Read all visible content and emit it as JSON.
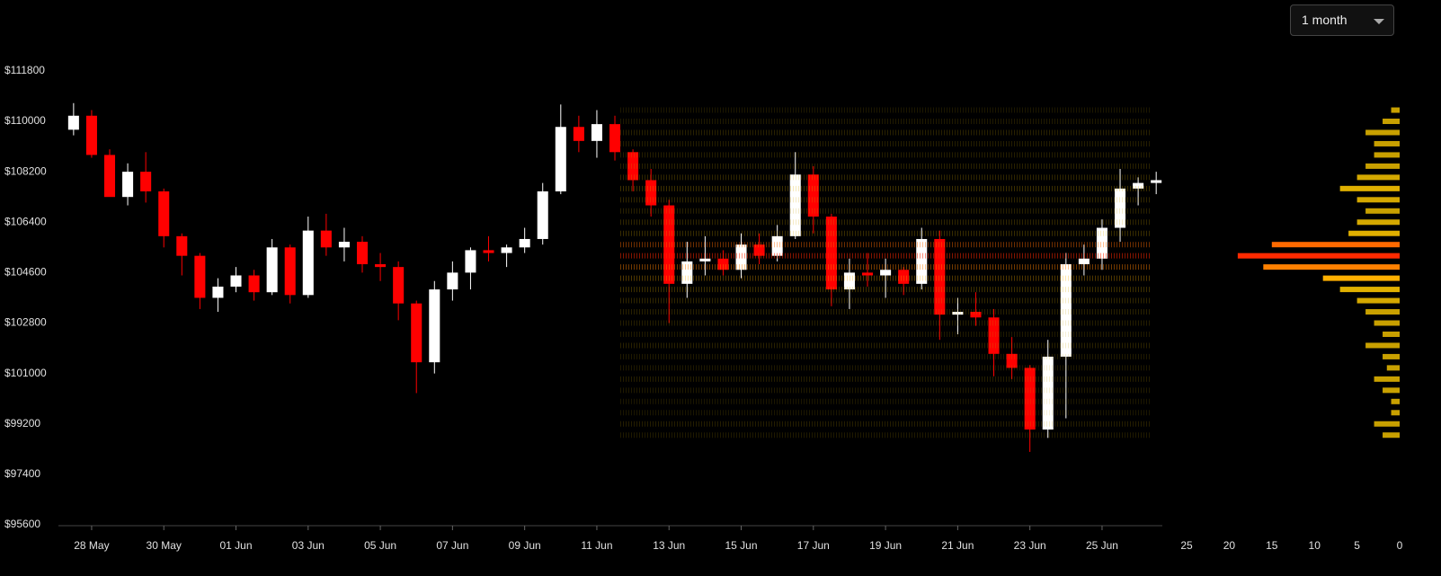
{
  "controls": {
    "range": "1 month"
  },
  "chart_data": [
    {
      "type": "candlestick",
      "up_color": "#ffffff",
      "down_color": "#ff0000",
      "x": [
        27.5,
        28,
        28.5,
        29,
        29.5,
        30,
        30.5,
        31,
        31.5,
        32,
        32.5,
        33,
        33.5,
        34,
        34.5,
        35,
        35.5,
        36,
        36.5,
        37,
        37.5,
        38,
        38.5,
        39,
        39.5,
        40,
        40.5,
        41,
        41.5,
        42,
        42.5,
        43,
        43.5,
        44,
        44.5,
        45,
        45.5,
        46,
        46.5,
        47,
        47.5,
        48,
        48.5,
        49,
        49.5,
        50,
        50.5,
        51,
        51.5,
        52,
        52.5,
        53,
        53.5,
        54,
        54.5,
        55,
        55.5,
        56,
        56.5,
        57,
        57.5
      ],
      "open": [
        109700,
        110200,
        108800,
        107300,
        108200,
        107500,
        105900,
        105200,
        103700,
        104100,
        104500,
        103900,
        105500,
        103800,
        106100,
        105500,
        105700,
        104900,
        104800,
        103500,
        101400,
        104000,
        104600,
        105400,
        105300,
        105500,
        105800,
        107500,
        109800,
        109300,
        109900,
        108900,
        107900,
        107000,
        104200,
        105000,
        105100,
        104700,
        105600,
        105200,
        105900,
        108100,
        106600,
        104000,
        104600,
        104500,
        104700,
        104200,
        105800,
        103100,
        103200,
        103000,
        101700,
        101200,
        99000,
        101600,
        104900,
        105100,
        106200,
        107600,
        107800
      ],
      "high": [
        110650,
        110400,
        109000,
        108500,
        108900,
        107600,
        106000,
        105300,
        104400,
        104800,
        104700,
        105800,
        105600,
        106600,
        106700,
        106200,
        105900,
        105300,
        105000,
        103600,
        104300,
        105000,
        105500,
        105900,
        105600,
        106200,
        107800,
        110600,
        110200,
        110400,
        110200,
        109000,
        108300,
        107200,
        105700,
        105900,
        105400,
        106000,
        106000,
        106300,
        108900,
        108400,
        106700,
        105100,
        105300,
        105100,
        104800,
        106200,
        106100,
        103700,
        103900,
        103300,
        102300,
        101300,
        102200,
        105300,
        105600,
        106500,
        108300,
        108000,
        108200
      ],
      "low": [
        109500,
        108700,
        107400,
        107000,
        107100,
        105500,
        104500,
        103300,
        103200,
        103900,
        103600,
        103800,
        103500,
        103700,
        105200,
        105000,
        104600,
        104300,
        102900,
        100300,
        101000,
        103600,
        104000,
        105000,
        104800,
        105300,
        105600,
        107400,
        108900,
        108700,
        108600,
        107500,
        106600,
        102800,
        103700,
        104500,
        104500,
        104400,
        104900,
        105000,
        105800,
        106000,
        103400,
        103300,
        104100,
        103700,
        103800,
        104000,
        102200,
        102400,
        102700,
        100900,
        100800,
        98200,
        98700,
        99400,
        104500,
        104700,
        105700,
        107000,
        107400
      ],
      "close": [
        110200,
        108800,
        107300,
        108200,
        107500,
        105900,
        105200,
        103700,
        104100,
        104500,
        103900,
        105500,
        103800,
        106100,
        105500,
        105700,
        104900,
        104800,
        103500,
        101400,
        104000,
        104600,
        105400,
        105300,
        105500,
        105800,
        107500,
        109800,
        109300,
        109900,
        108900,
        107900,
        107000,
        104200,
        105000,
        105100,
        104700,
        105600,
        105200,
        105900,
        108100,
        106600,
        104000,
        104600,
        104500,
        104700,
        104200,
        105800,
        103100,
        103200,
        103000,
        101700,
        101200,
        99000,
        101600,
        104900,
        105100,
        106200,
        107600,
        107800,
        107900
      ],
      "xlim": [
        27.08,
        57.67
      ],
      "xticks": [
        {
          "value": 28,
          "label": "28 May"
        },
        {
          "value": 30,
          "label": "30 May"
        },
        {
          "value": 32,
          "label": "01 Jun"
        },
        {
          "value": 34,
          "label": "03 Jun"
        },
        {
          "value": 36,
          "label": "05 Jun"
        },
        {
          "value": 38,
          "label": "07 Jun"
        },
        {
          "value": 40,
          "label": "09 Jun"
        },
        {
          "value": 42,
          "label": "11 Jun"
        },
        {
          "value": 44,
          "label": "13 Jun"
        },
        {
          "value": 46,
          "label": "15 Jun"
        },
        {
          "value": 48,
          "label": "17 Jun"
        },
        {
          "value": 50,
          "label": "19 Jun"
        },
        {
          "value": 52,
          "label": "21 Jun"
        },
        {
          "value": 54,
          "label": "23 Jun"
        },
        {
          "value": 56,
          "label": "25 Jun"
        }
      ],
      "ylim": [
        95600,
        114330
      ],
      "yticks": [
        {
          "value": 95600,
          "label": "$95600"
        },
        {
          "value": 97400,
          "label": "$97400"
        },
        {
          "value": 99200,
          "label": "$99200"
        },
        {
          "value": 101000,
          "label": "$101000"
        },
        {
          "value": 102800,
          "label": "$102800"
        },
        {
          "value": 104600,
          "label": "$104600"
        },
        {
          "value": 106400,
          "label": "$106400"
        },
        {
          "value": 108200,
          "label": "$108200"
        },
        {
          "value": 110000,
          "label": "$110000"
        },
        {
          "value": 111800,
          "label": "$111800"
        }
      ]
    },
    {
      "type": "bar",
      "horizontal": true,
      "y": [
        110400,
        110000,
        109600,
        109200,
        108800,
        108400,
        108000,
        107600,
        107200,
        106800,
        106400,
        106000,
        105600,
        105200,
        104800,
        104400,
        104000,
        103600,
        103200,
        102800,
        102400,
        102000,
        101600,
        101200,
        100800,
        100400,
        100000,
        99600,
        99200,
        98800
      ],
      "values": [
        1,
        2,
        4,
        3,
        3,
        4,
        5,
        7,
        5,
        4,
        5,
        6,
        15,
        19,
        16,
        9,
        7,
        5,
        4,
        3,
        2,
        4,
        2,
        1.5,
        3,
        2,
        1,
        1,
        3,
        2
      ],
      "colors": [
        "#c8a000",
        "#c8a000",
        "#c8a000",
        "#c8a000",
        "#c8a000",
        "#c8a000",
        "#d4a800",
        "#e0b000",
        "#d4a800",
        "#c8a000",
        "#d4a800",
        "#e0b000",
        "#ff6a00",
        "#ff2a00",
        "#ff8000",
        "#ffb000",
        "#e0b000",
        "#d4a800",
        "#c8a000",
        "#c8a000",
        "#c8a000",
        "#c8a000",
        "#c8a000",
        "#c8a000",
        "#c8a000",
        "#c8a000",
        "#c8a000",
        "#c8a000",
        "#c8a000",
        "#c8a000"
      ],
      "ylim": [
        95600,
        114330
      ],
      "xlim": [
        25,
        0
      ],
      "xticks": [
        25,
        20,
        15,
        10,
        5,
        0
      ]
    }
  ]
}
